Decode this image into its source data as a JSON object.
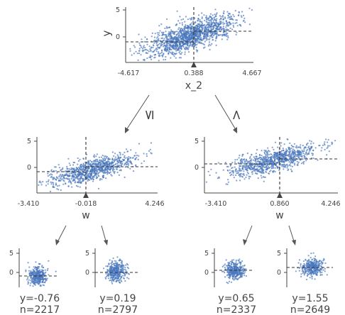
{
  "colors": {
    "points": "#4a78bd",
    "axis": "#444444",
    "text": "#444444",
    "split_line": "#333333"
  },
  "root": {
    "ylabel": "y",
    "y_ticks": [
      "5",
      "0"
    ],
    "x_ticks": [
      "-4.617",
      "0.388",
      "4.667"
    ],
    "feature": "x_2",
    "split": 0.388
  },
  "branch_labels": {
    "left": "≤",
    "right": ">"
  },
  "internal_nodes": [
    {
      "x_ticks": [
        "-3.410",
        "-0.018",
        "4.246"
      ],
      "y_ticks": [
        "5",
        "0"
      ],
      "feature": "w",
      "split": -0.018
    },
    {
      "x_ticks": [
        "-3.410",
        "0.860",
        "4.246"
      ],
      "y_ticks": [
        "5",
        "0"
      ],
      "feature": "w",
      "split": 0.86
    }
  ],
  "leaves": [
    {
      "y_ticks": [
        "5",
        "0"
      ],
      "prediction": "y=-0.76",
      "samples": "n=2217"
    },
    {
      "y_ticks": [
        "5",
        "0"
      ],
      "prediction": "y=0.19",
      "samples": "n=2797"
    },
    {
      "y_ticks": [
        "5",
        "0"
      ],
      "prediction": "y=0.65",
      "samples": "n=2337"
    },
    {
      "y_ticks": [
        "5",
        "0"
      ],
      "prediction": "y=1.55",
      "samples": "n=2649"
    }
  ]
}
